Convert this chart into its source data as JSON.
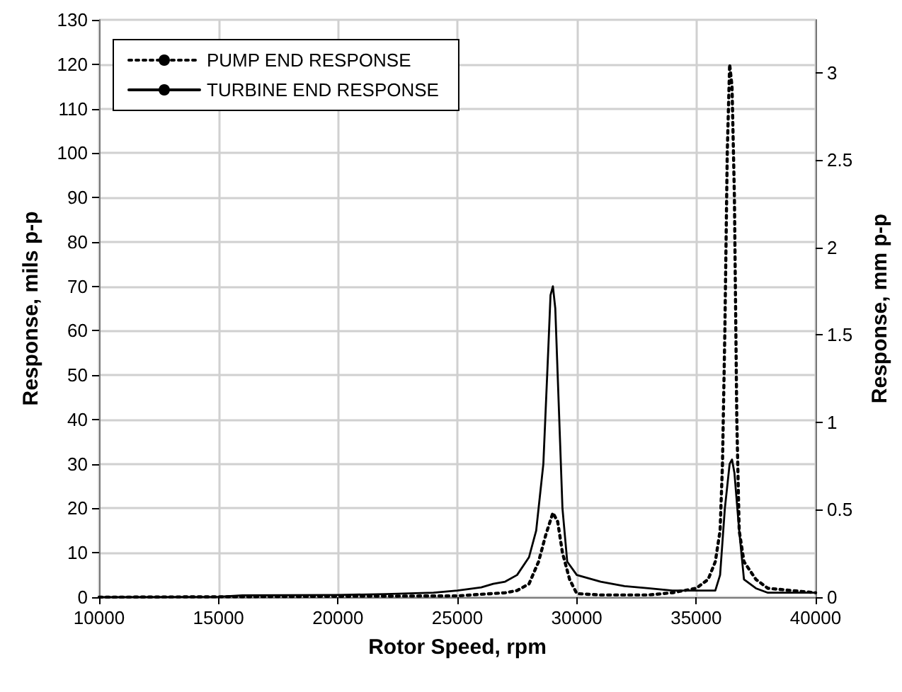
{
  "chart_data": {
    "type": "line",
    "xlabel": "Rotor Speed, rpm",
    "ylabel": "Response, mils p-p",
    "y2label": "Response, mm p-p",
    "xlim": [
      10000,
      40000
    ],
    "xticks": [
      10000,
      15000,
      20000,
      25000,
      30000,
      35000,
      40000
    ],
    "ylim": [
      0,
      130
    ],
    "yticks": [
      0,
      10,
      20,
      30,
      40,
      50,
      60,
      70,
      80,
      90,
      100,
      110,
      120,
      130
    ],
    "y2lim": [
      0,
      3.302
    ],
    "y2ticks": [
      0,
      0.5,
      1,
      1.5,
      2,
      2.5,
      3
    ],
    "grid": true,
    "legend": "top left",
    "marker": "none",
    "series": [
      {
        "name": "PUMP END RESPONSE",
        "color": "#000000",
        "line_style": "dotted",
        "x": [
          10000,
          20000,
          25000,
          27000,
          27500,
          28000,
          28400,
          28700,
          29000,
          29200,
          29400,
          29700,
          30000,
          31000,
          33000,
          34000,
          35000,
          35500,
          35800,
          36000,
          36100,
          36200,
          36300,
          36400,
          36500,
          36600,
          36700,
          36800,
          37000,
          37500,
          38000,
          39000,
          40000
        ],
        "values": [
          0,
          0.2,
          0.3,
          1,
          1.5,
          3,
          8,
          14,
          19,
          17,
          10,
          4,
          0.8,
          0.5,
          0.5,
          1,
          2,
          4,
          8,
          15,
          30,
          60,
          100,
          120,
          115,
          90,
          40,
          15,
          8,
          4,
          2,
          1.5,
          1
        ]
      },
      {
        "name": "TURBINE END RESPONSE",
        "color": "#000000",
        "line_style": "solid",
        "x": [
          10000,
          15000,
          16000,
          20000,
          22000,
          24000,
          25000,
          26000,
          26500,
          27000,
          27500,
          28000,
          28300,
          28600,
          28800,
          28900,
          29000,
          29100,
          29200,
          29400,
          29600,
          30000,
          31000,
          32000,
          33000,
          34000,
          35000,
          35800,
          36000,
          36200,
          36400,
          36500,
          36600,
          36800,
          37000,
          37500,
          38000,
          40000
        ],
        "values": [
          0,
          0.1,
          0.4,
          0.5,
          0.7,
          1,
          1.5,
          2.2,
          3,
          3.5,
          5,
          9,
          15,
          30,
          55,
          68,
          70,
          65,
          50,
          20,
          8,
          5,
          3.5,
          2.5,
          2,
          1.5,
          1.5,
          1.5,
          5,
          20,
          30,
          31,
          28,
          15,
          4,
          2,
          1,
          1
        ]
      }
    ]
  }
}
